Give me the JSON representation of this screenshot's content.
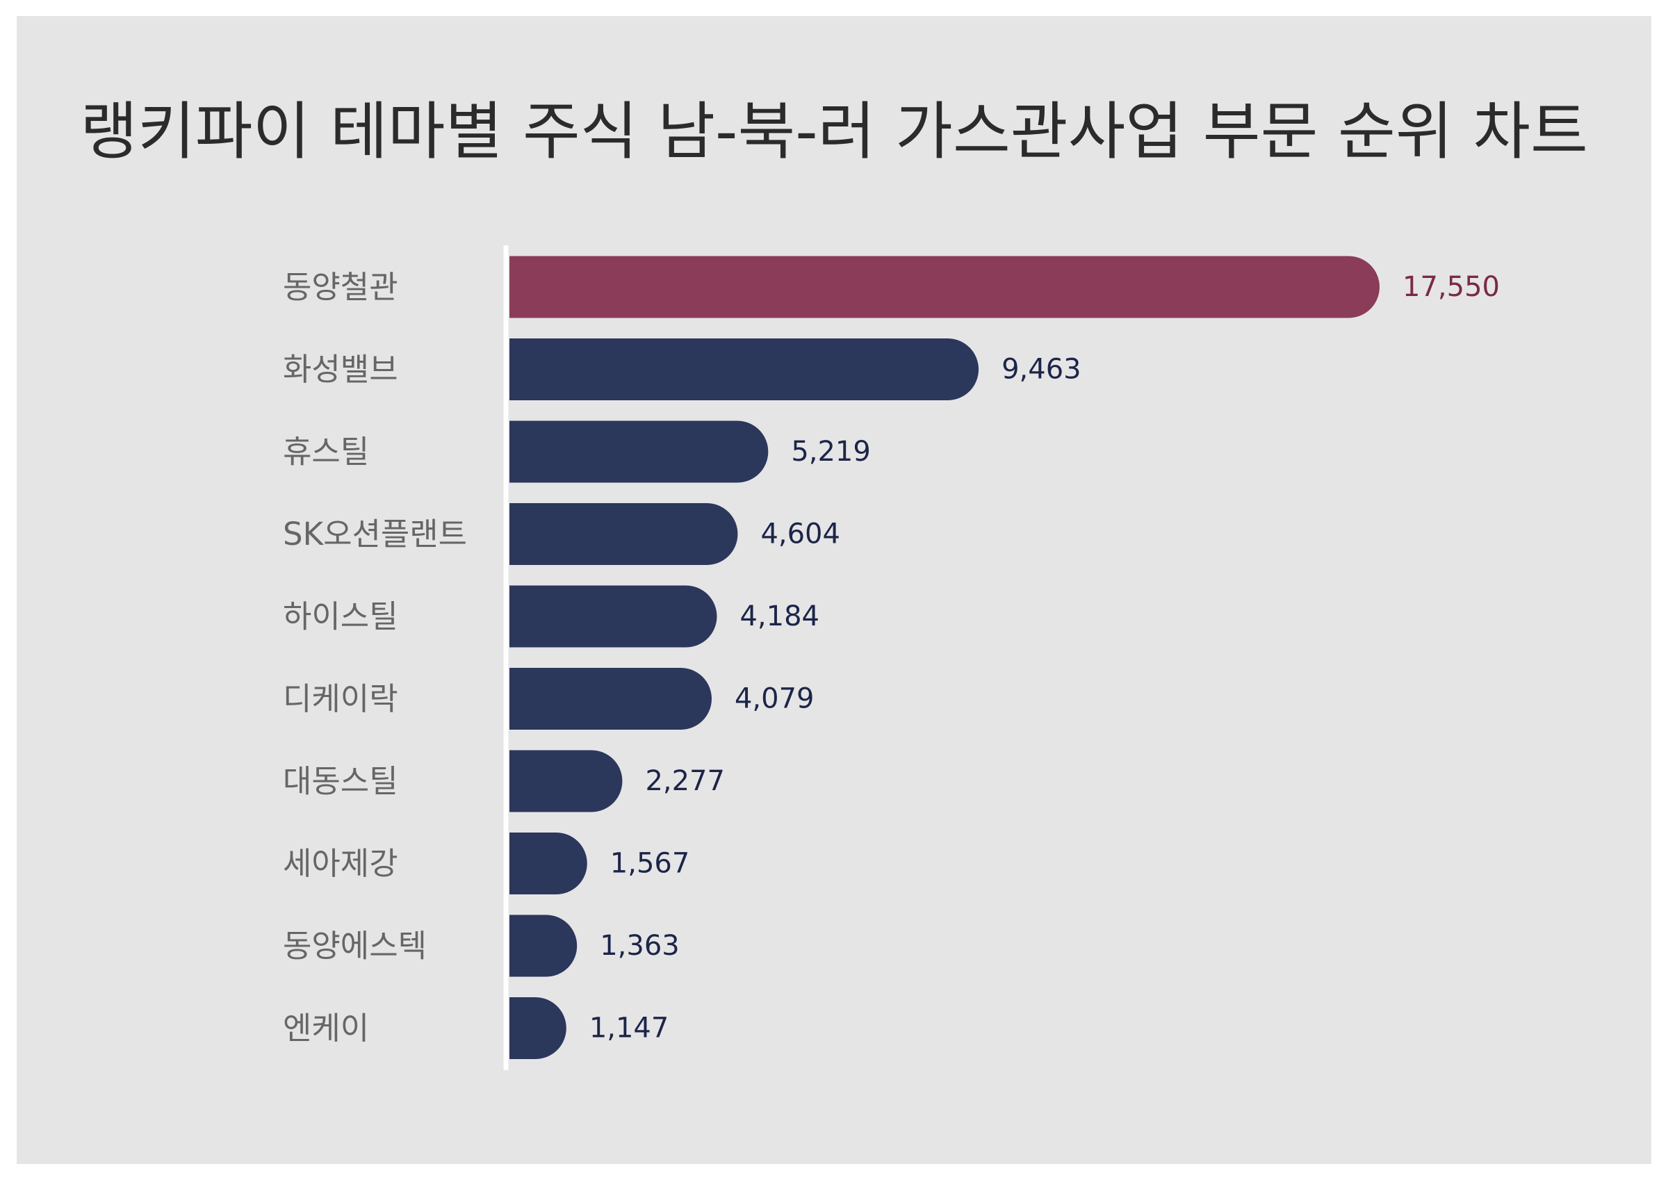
{
  "chart_data": {
    "type": "bar",
    "orientation": "horizontal",
    "title": "랭키파이 테마별 주식 남-북-러 가스관사업 부문 순위 차트",
    "categories": [
      "동양철관",
      "화성밸브",
      "휴스틸",
      "SK오션플랜트",
      "하이스틸",
      "디케이락",
      "대동스틸",
      "세아제강",
      "동양에스텍",
      "엔케이"
    ],
    "values": [
      17550,
      9463,
      5219,
      4604,
      4184,
      4079,
      2277,
      1567,
      1363,
      1147
    ],
    "value_labels": [
      "17,550",
      "9,463",
      "5,219",
      "4,604",
      "4,184",
      "4,079",
      "2,277",
      "1,567",
      "1,363",
      "1,147"
    ],
    "xlim": [
      0,
      17550
    ],
    "grid": false,
    "legend": "none",
    "colors": {
      "highlight_bar": "#8a3c58",
      "highlight_label": "#7a2a46",
      "bar": "#2c375c",
      "value_label": "#1c2548",
      "category_label": "#666666",
      "axis_line": "#ffffff",
      "background": "#e6e5e6",
      "title": "#2b2b2b"
    }
  }
}
